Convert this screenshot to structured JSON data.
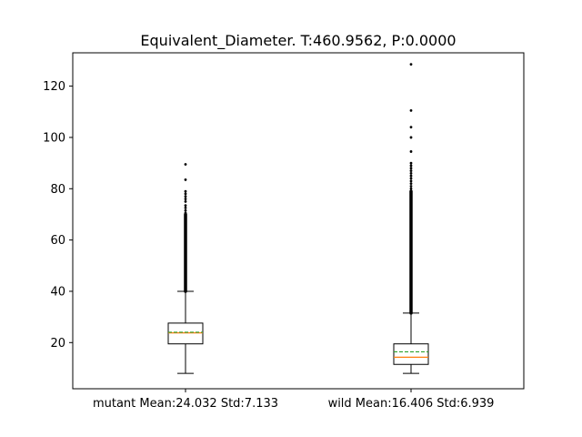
{
  "chart_data": {
    "type": "box",
    "title": "Equivalent_Diameter. T:460.9562, P:0.0000",
    "xlabel": "",
    "ylabel": "",
    "ylim": [
      2,
      133
    ],
    "yticks": [
      20,
      40,
      60,
      80,
      100,
      120
    ],
    "grid": false,
    "colors": {
      "median": "#ff7f0e",
      "mean": "#2ca02c",
      "box": "#000000"
    },
    "categories": [
      "mutant Mean:24.032 Std:7.133",
      "wild Mean:16.406 Std:6.939"
    ],
    "boxes": [
      {
        "label": "mutant Mean:24.032 Std:7.133",
        "whisker_low": 8,
        "q1": 19.5,
        "median": 23.8,
        "mean": 24.032,
        "q3": 27.6,
        "whisker_high": 40,
        "outlier_dense_range": [
          40,
          70
        ],
        "outliers": [
          70.5,
          71.5,
          72.5,
          73.5,
          75,
          76,
          77,
          78,
          79,
          83.5,
          89.5
        ]
      },
      {
        "label": "wild Mean:16.406 Std:6.939",
        "whisker_low": 8,
        "q1": 11.5,
        "median": 14.3,
        "mean": 16.406,
        "q3": 19.5,
        "whisker_high": 31.5,
        "outlier_dense_range": [
          31.5,
          79
        ],
        "outliers": [
          80,
          81,
          82,
          83,
          84,
          85,
          86,
          87,
          88,
          89,
          90,
          94.5,
          100,
          104,
          110.5,
          128.5
        ]
      }
    ]
  }
}
